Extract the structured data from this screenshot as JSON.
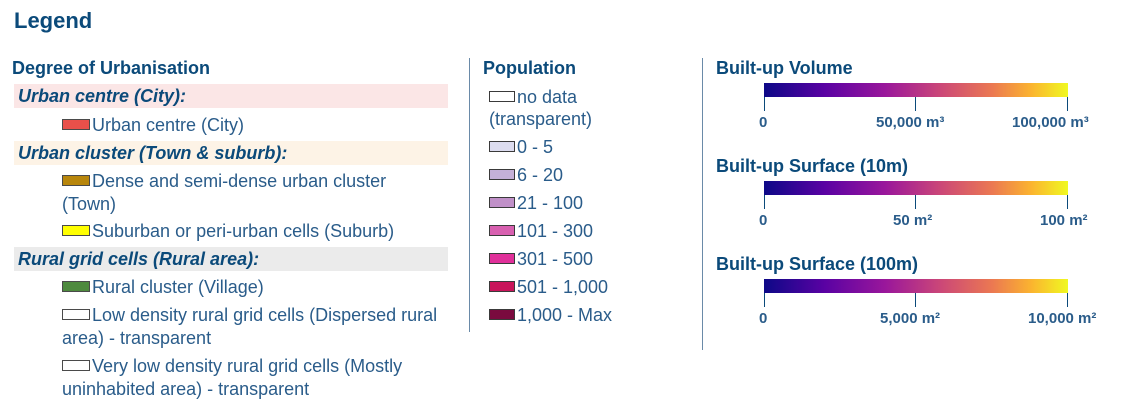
{
  "legend_title": "Legend",
  "urbanisation": {
    "title": "Degree of Urbanisation",
    "groups": [
      {
        "heading": "Urban centre (City):",
        "bg": "#fbe6e6",
        "items": [
          {
            "label": "Urban centre (City)",
            "color": "#e8504a"
          }
        ]
      },
      {
        "heading": "Urban cluster (Town & suburb):",
        "bg": "#fdf3e6",
        "items": [
          {
            "label": "Dense and semi-dense urban cluster (Town)",
            "color": "#b8860b"
          },
          {
            "label": "Suburban or peri-urban cells (Suburb)",
            "color": "#ffff00"
          }
        ]
      },
      {
        "heading": "Rural grid cells (Rural area):",
        "bg": "#ebebeb",
        "items": [
          {
            "label": "Rural cluster (Village)",
            "color": "#4e8a3e"
          },
          {
            "label": "Low density rural grid cells (Dispersed rural area) - transparent",
            "color": "transparent"
          },
          {
            "label": "Very low density rural grid cells (Mostly uninhabited area) - transparent",
            "color": "transparent"
          }
        ]
      }
    ]
  },
  "population": {
    "title": "Population",
    "items": [
      {
        "label": "no data (transparent)",
        "color": "transparent"
      },
      {
        "label": "0 - 5",
        "color": "#dcdcef"
      },
      {
        "label": "6 - 20",
        "color": "#c4b0d8"
      },
      {
        "label": "21 - 100",
        "color": "#c090c8"
      },
      {
        "label": "101 - 300",
        "color": "#d860b0"
      },
      {
        "label": "301 - 500",
        "color": "#e0309a"
      },
      {
        "label": "501 - 1,000",
        "color": "#c8155a"
      },
      {
        "label": "1,000 - Max",
        "color": "#7a0a3e"
      }
    ]
  },
  "builtup": [
    {
      "title": "Built-up Volume",
      "ticks": [
        "0",
        "50,000 m³",
        "100,000 m³"
      ]
    },
    {
      "title": "Built-up Surface (10m)",
      "ticks": [
        "0",
        "50 m²",
        "100 m²"
      ]
    },
    {
      "title": "Built-up Surface (100m)",
      "ticks": [
        "0",
        "5,000 m²",
        "10,000 m²"
      ]
    }
  ]
}
